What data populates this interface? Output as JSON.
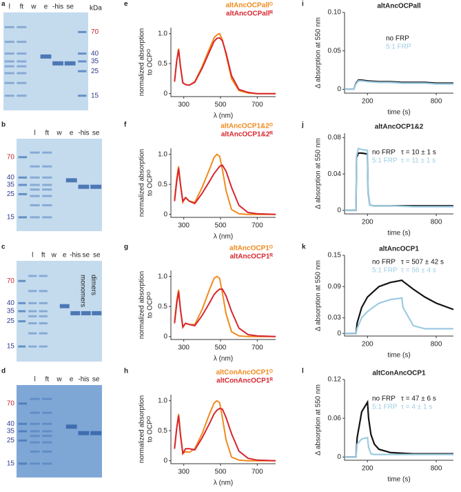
{
  "gels": [
    {
      "panel": "a",
      "lanes": [
        "l",
        "ft",
        "w",
        "e",
        "-his",
        "se"
      ],
      "unit": "kDa",
      "markers": [
        "70",
        "40",
        "35",
        "25",
        "15"
      ]
    },
    {
      "panel": "b",
      "lanes": [
        "l",
        "ft",
        "w",
        "e",
        "-his",
        "se"
      ],
      "markers": [
        "70",
        "40",
        "35",
        "25",
        "15"
      ]
    },
    {
      "panel": "c",
      "lanes": [
        "l",
        "ft",
        "w",
        "e",
        "-his",
        "se",
        "se"
      ],
      "markers": [
        "70",
        "40",
        "35",
        "25",
        "15"
      ],
      "notes": [
        "monomers",
        "dimers"
      ]
    },
    {
      "panel": "d",
      "lanes": [
        "l",
        "ft",
        "w",
        "e",
        "-his",
        "se"
      ],
      "markers": [
        "70",
        "40",
        "35",
        "25",
        "15"
      ]
    }
  ],
  "chart_data": [
    {
      "type": "line",
      "panel": "e",
      "xlabel": "λ (nm)",
      "ylabel": [
        "normalized absorption",
        "to OCPᴼ"
      ],
      "xlim": [
        230,
        800
      ],
      "ylim": [
        -0.05,
        1.1
      ],
      "xticks": [
        300,
        500,
        700
      ],
      "yticks": [
        0,
        0.5,
        {
          "value": 1,
          "label": "1.0"
        }
      ],
      "x": [
        250,
        262,
        272,
        282,
        295,
        310,
        330,
        360,
        400,
        440,
        465,
        480,
        495,
        510,
        530,
        560,
        600,
        650,
        700,
        800
      ],
      "series": [
        {
          "name": "altAncOCPallᴼ",
          "color": "#f08a1c",
          "values": [
            0.2,
            0.55,
            0.75,
            0.45,
            0.18,
            0.15,
            0.14,
            0.2,
            0.45,
            0.75,
            0.93,
            0.98,
            1.0,
            0.9,
            0.65,
            0.25,
            0.05,
            0.01,
            0,
            0
          ]
        },
        {
          "name": "altAncOCPallᴿ",
          "color": "#d7262e",
          "values": [
            0.2,
            0.55,
            0.73,
            0.45,
            0.18,
            0.15,
            0.14,
            0.19,
            0.42,
            0.7,
            0.87,
            0.92,
            0.93,
            0.88,
            0.68,
            0.3,
            0.07,
            0.02,
            0,
            0
          ]
        }
      ]
    },
    {
      "type": "line",
      "panel": "f",
      "xlabel": "λ (nm)",
      "ylabel": [
        "normalized absorption",
        "to OCPᴼ"
      ],
      "xlim": [
        230,
        800
      ],
      "ylim": [
        -0.05,
        1.1
      ],
      "xticks": [
        300,
        500,
        700
      ],
      "yticks": [
        0,
        0.5,
        {
          "value": 1,
          "label": "1.0"
        }
      ],
      "x": [
        250,
        262,
        272,
        282,
        295,
        310,
        330,
        360,
        400,
        440,
        465,
        480,
        495,
        510,
        530,
        560,
        600,
        650,
        700,
        800
      ],
      "series": [
        {
          "name": "altAncOCP1&2ᴼ",
          "color": "#f08a1c",
          "values": [
            0.25,
            0.6,
            0.8,
            0.5,
            0.2,
            0.28,
            0.22,
            0.2,
            0.45,
            0.75,
            0.95,
            1.0,
            0.97,
            0.75,
            0.4,
            0.08,
            0.01,
            0,
            0,
            0
          ]
        },
        {
          "name": "altAncOCP1&2ᴿ",
          "color": "#d7262e",
          "values": [
            0.22,
            0.55,
            0.77,
            0.5,
            0.22,
            0.28,
            0.22,
            0.18,
            0.35,
            0.55,
            0.68,
            0.74,
            0.8,
            0.82,
            0.72,
            0.45,
            0.15,
            0.03,
            0.01,
            0
          ]
        }
      ]
    },
    {
      "type": "line",
      "panel": "g",
      "xlabel": "λ (nm)",
      "ylabel": [
        "normalized absorption",
        "to OCPᴼ"
      ],
      "xlim": [
        230,
        800
      ],
      "ylim": [
        -0.05,
        1.1
      ],
      "xticks": [
        300,
        500,
        700
      ],
      "yticks": [
        0,
        0.5,
        {
          "value": 1,
          "label": "1.0"
        }
      ],
      "x": [
        250,
        262,
        272,
        282,
        295,
        310,
        330,
        360,
        400,
        440,
        465,
        480,
        495,
        510,
        530,
        560,
        600,
        650,
        700,
        800
      ],
      "series": [
        {
          "name": "altAncOCP1ᴼ",
          "color": "#f08a1c",
          "values": [
            0.25,
            0.6,
            0.78,
            0.45,
            0.15,
            0.22,
            0.2,
            0.2,
            0.45,
            0.78,
            0.97,
            1.0,
            0.97,
            0.73,
            0.38,
            0.08,
            0.01,
            0,
            0,
            0
          ]
        },
        {
          "name": "altAncOCP1ᴿ",
          "color": "#d7262e",
          "values": [
            0.22,
            0.55,
            0.75,
            0.45,
            0.16,
            0.22,
            0.2,
            0.18,
            0.35,
            0.56,
            0.7,
            0.75,
            0.79,
            0.79,
            0.68,
            0.42,
            0.14,
            0.03,
            0.01,
            0
          ]
        }
      ]
    },
    {
      "type": "line",
      "panel": "h",
      "xlabel": "λ (nm)",
      "ylabel": [
        "normalized absorption",
        "to OCPᴼ"
      ],
      "xlim": [
        230,
        800
      ],
      "ylim": [
        -0.05,
        1.1
      ],
      "xticks": [
        300,
        500,
        700
      ],
      "yticks": [
        0,
        0.5,
        {
          "value": 1,
          "label": "1.0"
        }
      ],
      "x": [
        250,
        262,
        272,
        282,
        295,
        310,
        330,
        360,
        400,
        440,
        465,
        480,
        495,
        510,
        530,
        560,
        600,
        650,
        700,
        800
      ],
      "series": [
        {
          "name": "altConAncOCP1ᴼ",
          "color": "#f08a1c",
          "values": [
            0.2,
            0.55,
            0.78,
            0.45,
            0.12,
            0.15,
            0.14,
            0.2,
            0.45,
            0.78,
            0.96,
            1.0,
            0.97,
            0.72,
            0.35,
            0.06,
            0.01,
            0,
            0,
            0
          ]
        },
        {
          "name": "altConAncOCP1ᴿ",
          "color": "#d7262e",
          "values": [
            0.2,
            0.55,
            0.75,
            0.42,
            0.12,
            0.2,
            0.2,
            0.18,
            0.38,
            0.62,
            0.78,
            0.84,
            0.87,
            0.86,
            0.72,
            0.45,
            0.16,
            0.04,
            0.01,
            0
          ]
        }
      ]
    },
    {
      "type": "kinetic",
      "panel": "i",
      "title": "altAncOCPall",
      "xlabel": "time (s)",
      "ylabel": "Δ absorption at 550 nm",
      "xlim": [
        0,
        950
      ],
      "ylim": [
        -0.005,
        0.1
      ],
      "xticks": [
        200,
        800
      ],
      "yticks": [
        0,
        0.05,
        {
          "value": 0.1,
          "label": "0.10"
        }
      ],
      "x": [
        0,
        80,
        100,
        120,
        150,
        200,
        300,
        400,
        500,
        600,
        700,
        800,
        950
      ],
      "series": [
        {
          "name": "no FRP",
          "color": "#111111",
          "values": [
            0,
            0,
            0.008,
            0.012,
            0.012,
            0.011,
            0.01,
            0.01,
            0.009,
            0.009,
            0.009,
            0.008,
            0.008
          ]
        },
        {
          "name": "5:1 FRP",
          "color": "#9ccbe2",
          "values": [
            0,
            0,
            0.007,
            0.011,
            0.011,
            0.01,
            0.009,
            0.009,
            0.008,
            0.008,
            0.008,
            0.007,
            0.007
          ]
        }
      ]
    },
    {
      "type": "kinetic",
      "panel": "j",
      "title": "altAncOCP1&2",
      "xlabel": "time (s)",
      "ylabel": "Δ absorption at 550 nm",
      "xlim": [
        0,
        950
      ],
      "ylim": [
        -0.004,
        0.085
      ],
      "xticks": [
        200,
        800
      ],
      "yticks": [
        0,
        0.04,
        0.08
      ],
      "x": [
        0,
        100,
        105,
        120,
        150,
        200,
        205,
        220,
        250,
        300,
        400,
        600,
        800,
        950
      ],
      "series": [
        {
          "name": "no FRP",
          "color": "#111111",
          "values": [
            0,
            0,
            0.058,
            0.063,
            0.063,
            0.062,
            0.02,
            0.006,
            0.005,
            0.005,
            0.005,
            0.005,
            0.005,
            0.005
          ]
        },
        {
          "name": "5:1 FRP",
          "color": "#9ccbe2",
          "values": [
            0,
            0,
            0.06,
            0.068,
            0.067,
            0.066,
            0.02,
            0.006,
            0.005,
            0.005,
            0.005,
            0.004,
            0.004,
            0.004
          ]
        }
      ],
      "annotations": [
        "τ = 10 ± 1 s",
        "τ = 11 ± 1 s"
      ]
    },
    {
      "type": "kinetic",
      "panel": "k",
      "title": "altAncOCP1",
      "xlabel": "time (s)",
      "ylabel": "Δ absorption at 550 nm",
      "xlim": [
        0,
        950
      ],
      "ylim": [
        -0.005,
        0.15
      ],
      "xticks": [
        200,
        800
      ],
      "yticks": [
        0,
        0.03,
        0.09,
        0.15
      ],
      "x": [
        0,
        100,
        110,
        150,
        200,
        300,
        400,
        500,
        510,
        600,
        700,
        800,
        950
      ],
      "series": [
        {
          "name": "no FRP",
          "color": "#111111",
          "values": [
            0,
            0,
            0.02,
            0.05,
            0.07,
            0.09,
            0.098,
            0.102,
            0.1,
            0.085,
            0.07,
            0.058,
            0.046
          ]
        },
        {
          "name": "5:1 FRP",
          "color": "#9ccbe2",
          "values": [
            0,
            0,
            0.01,
            0.03,
            0.042,
            0.058,
            0.065,
            0.068,
            0.05,
            0.015,
            0.009,
            0.009,
            0.009
          ]
        }
      ],
      "annotations": [
        "τ = 507 ± 42 s",
        "τ =  56 ±  4 s"
      ]
    },
    {
      "type": "kinetic",
      "panel": "l",
      "title": "altConAncOCP1",
      "xlabel": "time (s)",
      "ylabel": "Δ absorption at 550 nm",
      "xlim": [
        0,
        950
      ],
      "ylim": [
        -0.005,
        0.12
      ],
      "xticks": [
        200,
        800
      ],
      "yticks": [
        0,
        0.06,
        0.12
      ],
      "x": [
        0,
        100,
        110,
        150,
        200,
        210,
        230,
        260,
        300,
        400,
        600,
        800,
        950
      ],
      "series": [
        {
          "name": "no FRP",
          "color": "#111111",
          "values": [
            0,
            0,
            0.03,
            0.07,
            0.085,
            0.06,
            0.035,
            0.02,
            0.012,
            0.007,
            0.005,
            0.005,
            0.005
          ]
        },
        {
          "name": "5:1 FRP",
          "color": "#9ccbe2",
          "values": [
            0,
            0,
            0.02,
            0.028,
            0.03,
            0.015,
            0.005,
            0.004,
            0.004,
            0.004,
            0.004,
            0.004,
            0.004
          ]
        }
      ],
      "annotations": [
        "τ = 47 ± 6 s",
        "τ =  4 ± 1 s"
      ]
    }
  ]
}
